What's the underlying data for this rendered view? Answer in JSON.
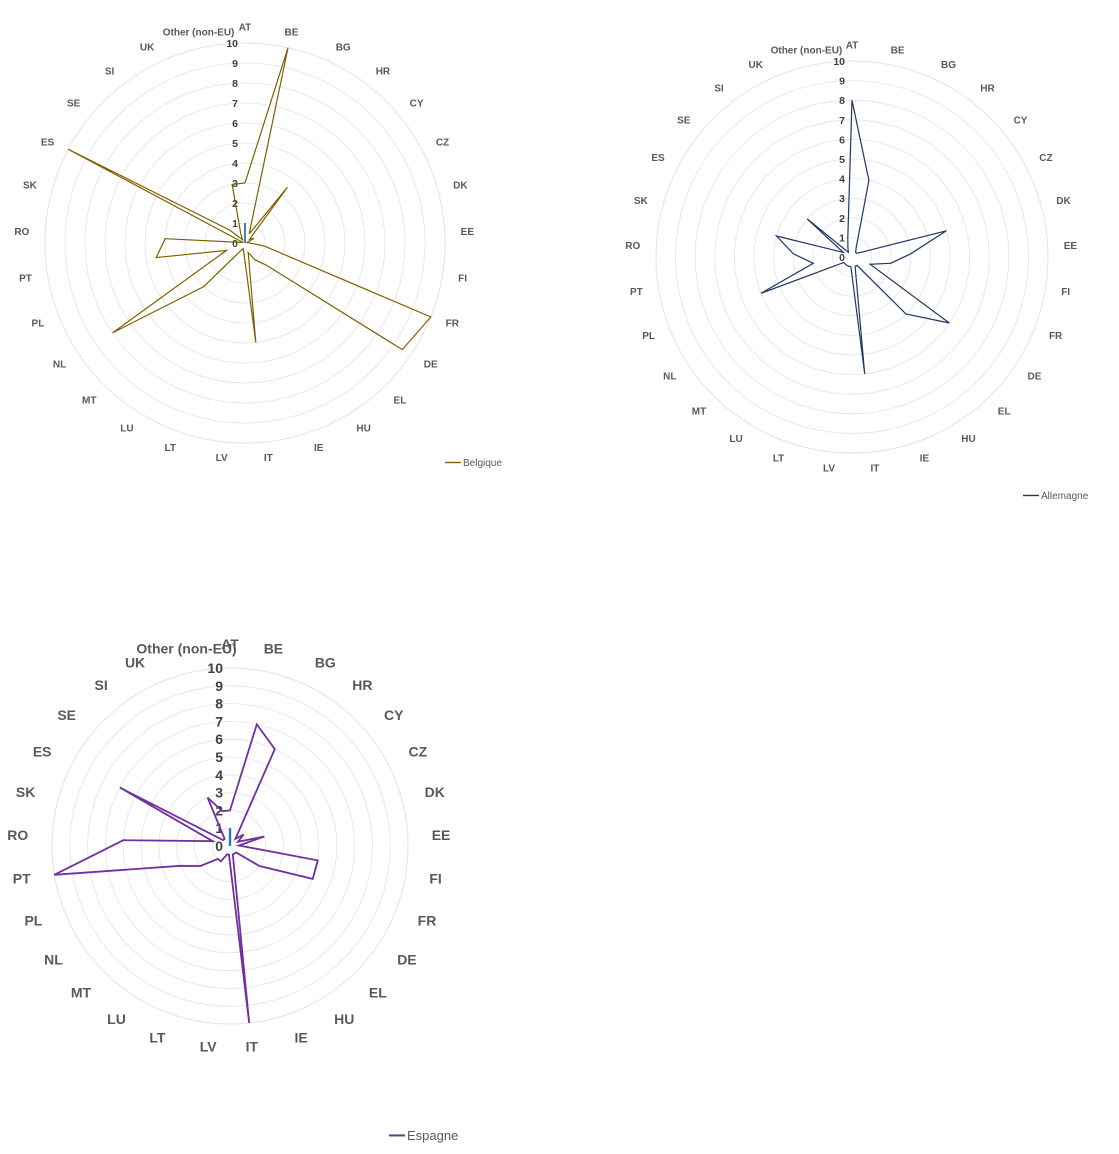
{
  "chart_data": [
    {
      "type": "radar",
      "title": "",
      "categories": [
        "AT",
        "BE",
        "BG",
        "HR",
        "CY",
        "CZ",
        "DK",
        "EE",
        "FI",
        "FR",
        "DE",
        "EL",
        "HU",
        "IE",
        "IT",
        "LV",
        "LT",
        "LU",
        "MT",
        "NL",
        "PL",
        "PT",
        "RO",
        "SK",
        "ES",
        "SE",
        "SI",
        "UK",
        "Other (non-EU)"
      ],
      "rlim": [
        0,
        10
      ],
      "ticks": [
        "0",
        "1",
        "2",
        "3",
        "4",
        "5",
        "6",
        "7",
        "8",
        "9",
        "10"
      ],
      "grid": true,
      "legend_position": "bottom-right",
      "series": [
        {
          "name": "Belgique",
          "color": "#7f6000",
          "values": [
            3,
            10,
            0.5,
            3.5,
            0.3,
            0.5,
            0.1,
            0.2,
            1,
            10,
            9.5,
            1.5,
            1,
            0.5,
            5,
            0.5,
            0.3,
            0.5,
            3,
            8,
            1,
            4.5,
            4,
            0.1,
            10,
            1,
            0.2,
            0.5,
            3
          ]
        },
        {
          "name": "",
          "color": "#2e75b6",
          "values": [
            1,
            0,
            0,
            0,
            0,
            0,
            0,
            0,
            0,
            0,
            0,
            0,
            0,
            0,
            0,
            0,
            0,
            0,
            0,
            0,
            0,
            0,
            0,
            0,
            0,
            0,
            0,
            0,
            0
          ]
        }
      ]
    },
    {
      "type": "radar",
      "title": "",
      "categories": [
        "AT",
        "BE",
        "BG",
        "HR",
        "CY",
        "CZ",
        "DK",
        "EE",
        "FI",
        "FR",
        "DE",
        "EL",
        "HU",
        "IE",
        "IT",
        "LV",
        "LT",
        "LU",
        "MT",
        "NL",
        "PL",
        "PT",
        "RO",
        "SK",
        "ES",
        "SE",
        "SI",
        "UK",
        "Other (non-EU)"
      ],
      "rlim": [
        0,
        10
      ],
      "ticks": [
        "0",
        "1",
        "2",
        "3",
        "4",
        "5",
        "6",
        "7",
        "8",
        "9",
        "10"
      ],
      "grid": true,
      "legend_position": "bottom-right",
      "series": [
        {
          "name": "Allemagne",
          "color": "#1f3864",
          "values": [
            8,
            4,
            0.5,
            0.3,
            0.3,
            0.5,
            5,
            3,
            2,
            1,
            6,
            4,
            0.5,
            0.5,
            6,
            0.5,
            0.5,
            0.5,
            0.5,
            0.5,
            5,
            2,
            3,
            4,
            0.5,
            3,
            0.3,
            0.5,
            1
          ]
        }
      ]
    },
    {
      "type": "radar",
      "title": "",
      "categories": [
        "AT",
        "BE",
        "BG",
        "HR",
        "CY",
        "CZ",
        "DK",
        "EE",
        "FI",
        "FR",
        "DE",
        "EL",
        "HU",
        "IE",
        "IT",
        "LV",
        "LT",
        "LU",
        "MT",
        "NL",
        "PL",
        "PT",
        "RO",
        "SK",
        "ES",
        "SE",
        "SI",
        "UK",
        "Other (non-EU)"
      ],
      "rlim": [
        0,
        10
      ],
      "ticks": [
        "0",
        "1",
        "2",
        "3",
        "4",
        "5",
        "6",
        "7",
        "8",
        "9",
        "10"
      ],
      "grid": true,
      "legend_position": "bottom-center",
      "series": [
        {
          "name": "Espagne",
          "color": "#7030a0",
          "values": [
            2,
            7,
            6,
            0.5,
            1,
            0.5,
            2,
            0.5,
            5,
            5,
            2,
            0.5,
            0.5,
            0.5,
            10,
            0.5,
            0.5,
            1,
            1,
            2,
            3,
            10,
            6,
            1,
            7,
            0.5,
            0.5,
            3,
            2
          ]
        },
        {
          "name": "",
          "color": "#2e75b6",
          "values": [
            1,
            0,
            0,
            0,
            0,
            0,
            0,
            0,
            0,
            0,
            0,
            0,
            0,
            0,
            0,
            0,
            0,
            0,
            0,
            0,
            0,
            0,
            0,
            0,
            0,
            0,
            0,
            0,
            0
          ]
        }
      ]
    }
  ]
}
